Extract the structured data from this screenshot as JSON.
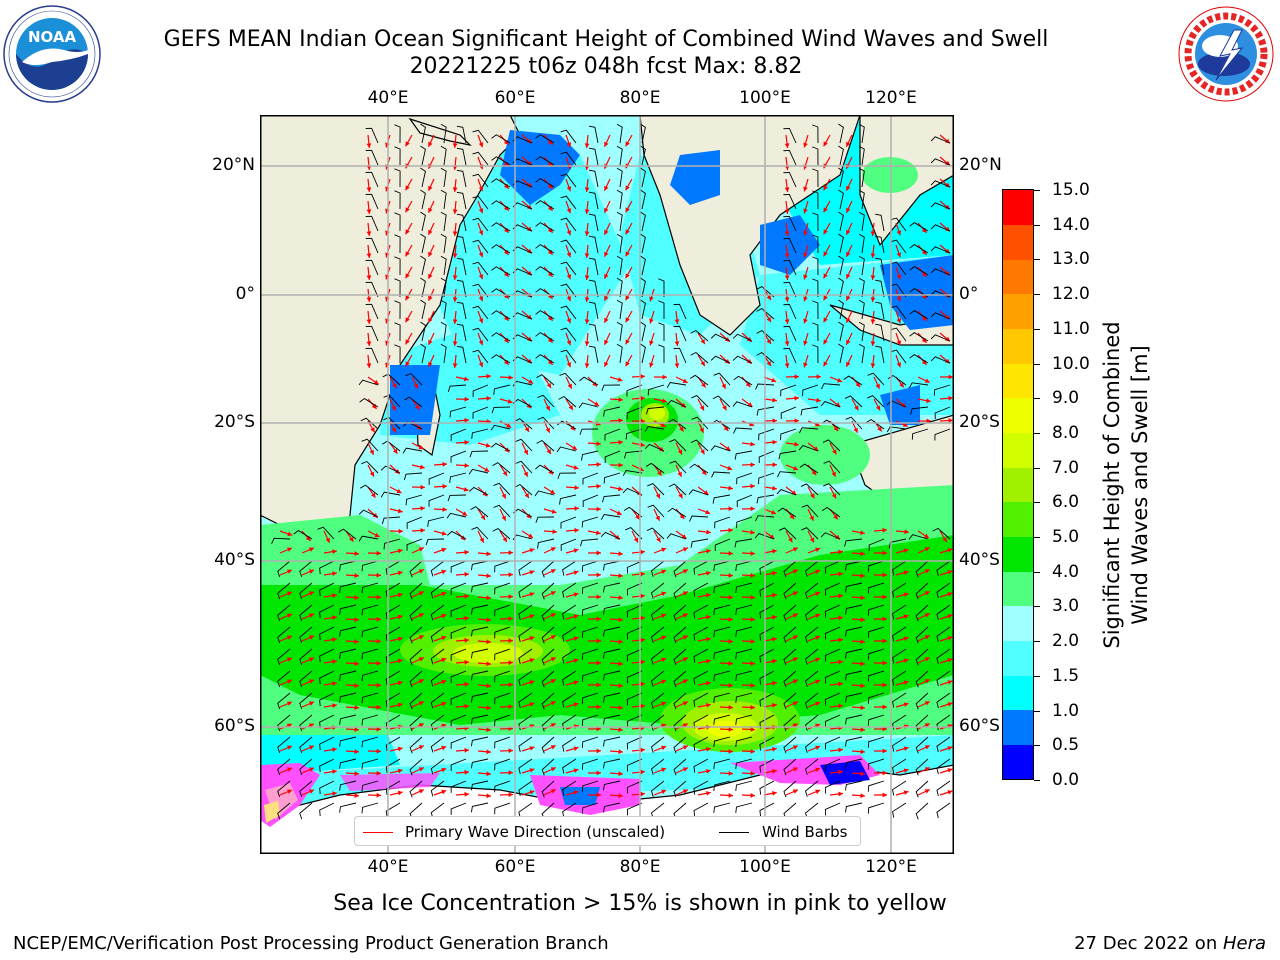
{
  "header": {
    "title_line1": "GEFS MEAN Indian Ocean Significant Height of Combined Wind Waves and Swell",
    "title_line2": "20221225 t06z 048h fcst   Max: 8.82"
  },
  "logos": {
    "left": {
      "name": "noaa-logo",
      "text": "NOAA",
      "ring_text": "NATIONAL OCEANIC AND ATMOSPHERIC ADMINISTRATION • U.S. DEPARTMENT OF COMMERCE"
    },
    "right": {
      "name": "nws-logo",
      "ring_text": "NATIONAL WEATHER SERVICE"
    }
  },
  "map": {
    "lon_labels": [
      "40°E",
      "60°E",
      "80°E",
      "100°E",
      "120°E"
    ],
    "lat_labels_left": [
      "20°N",
      "0°",
      "20°S",
      "40°S",
      "60°S"
    ],
    "lat_labels_right": [
      "20°N",
      "0°",
      "20°S",
      "40°S",
      "60°S"
    ],
    "colors": {
      "land": "#efeedd",
      "coast": "#000000",
      "grid": "#b0b0b0",
      "wave_arrow": "#ff0000",
      "wind_barb": "#000000"
    },
    "max_wave_height_m": 8.82
  },
  "legend": {
    "primary_wave_label": "Primary Wave Direction (unscaled)",
    "wind_barbs_label": "Wind Barbs",
    "primary_wave_color": "#ff0000",
    "wind_barbs_color": "#000000"
  },
  "colorbar": {
    "label_line1": "Significant Height of Combined",
    "label_line2": "Wind Waves and Swell [m]",
    "ticks": [
      "15.0",
      "14.0",
      "13.0",
      "12.0",
      "11.0",
      "10.0",
      "9.0",
      "8.0",
      "7.0",
      "6.0",
      "5.0",
      "4.0",
      "3.0",
      "2.0",
      "1.5",
      "1.0",
      "0.5",
      "0.0"
    ],
    "colors_bottom_to_top": [
      "#0000ff",
      "#0078ff",
      "#00ffff",
      "#50ffff",
      "#a0ffff",
      "#50ff80",
      "#00e600",
      "#50f000",
      "#a0f000",
      "#d2ff00",
      "#f0ff00",
      "#ffe600",
      "#ffc800",
      "#ffa000",
      "#ff7800",
      "#ff5000",
      "#ff0000"
    ]
  },
  "caption": "Sea Ice Concentration > 15% is shown in pink to yellow",
  "footer": {
    "left": "NCEP/EMC/Verification Post Processing Product Generation Branch",
    "right_prefix": "27 Dec 2022 on ",
    "right_host": "Hera"
  }
}
